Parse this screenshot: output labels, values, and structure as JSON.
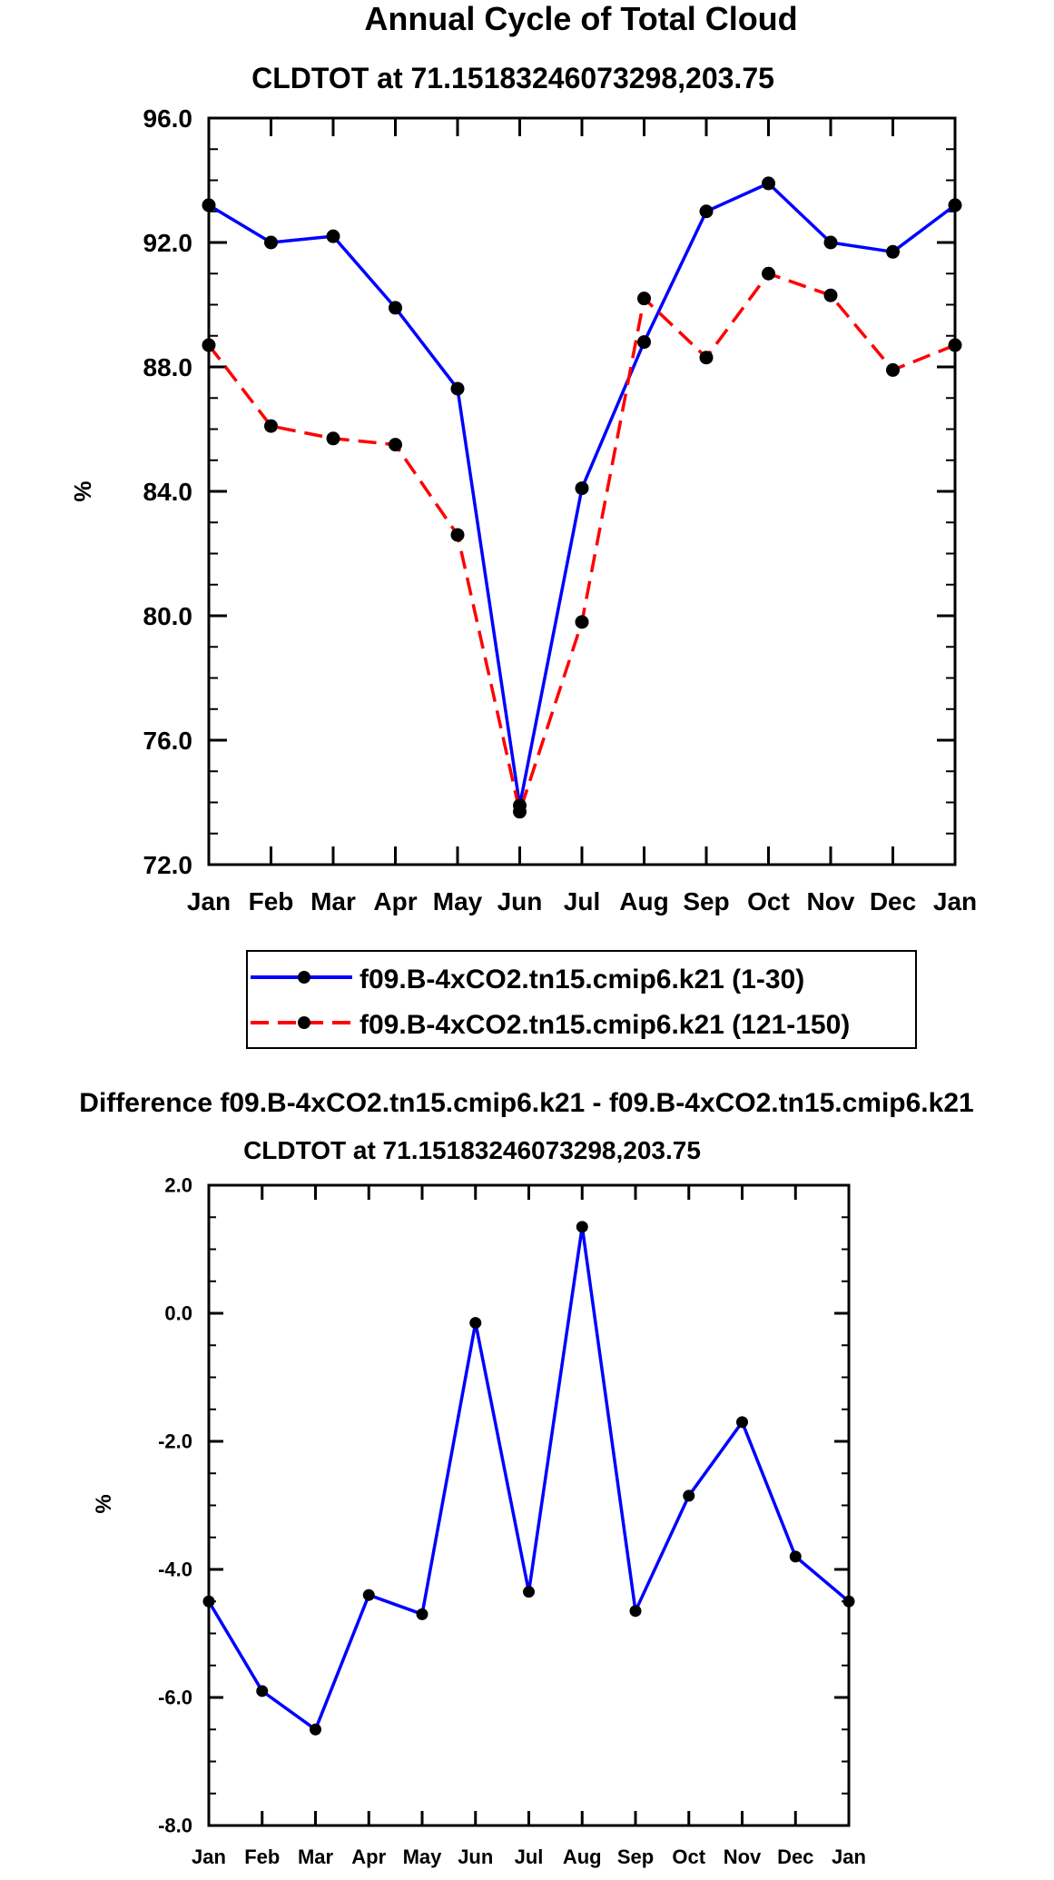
{
  "chart_data": [
    {
      "type": "line",
      "title": "Annual Cycle of Total Cloud",
      "subtitle": "CLDTOT at 71.15183246073298,203.75",
      "xlabel": "",
      "ylabel": "%",
      "categories": [
        "Jan",
        "Feb",
        "Mar",
        "Apr",
        "May",
        "Jun",
        "Jul",
        "Aug",
        "Sep",
        "Oct",
        "Nov",
        "Dec",
        "Jan"
      ],
      "ylim": [
        72.0,
        96.0
      ],
      "yticks": [
        72.0,
        76.0,
        80.0,
        84.0,
        88.0,
        92.0,
        96.0
      ],
      "ytick_labels": [
        "72.0",
        "76.0",
        "80.0",
        "84.0",
        "88.0",
        "92.0",
        "96.0"
      ],
      "grid": false,
      "legend_position": "bottom",
      "series": [
        {
          "name": "f09.B-4xCO2.tn15.cmip6.k21 (1-30)",
          "color": "#0000ff",
          "dash": "solid",
          "values": [
            93.2,
            92.0,
            92.2,
            89.9,
            87.3,
            73.9,
            84.1,
            88.8,
            93.0,
            93.9,
            92.0,
            91.7,
            93.2
          ]
        },
        {
          "name": "f09.B-4xCO2.tn15.cmip6.k21 (121-150)",
          "color": "#ff0000",
          "dash": "dashed",
          "values": [
            88.7,
            86.1,
            85.7,
            85.5,
            82.6,
            73.7,
            79.8,
            90.2,
            88.3,
            91.0,
            90.3,
            87.9,
            88.7
          ]
        }
      ]
    },
    {
      "type": "line",
      "title": "Difference f09.B-4xCO2.tn15.cmip6.k21 - f09.B-4xCO2.tn15.cmip6.k21",
      "subtitle": "CLDTOT at 71.15183246073298,203.75",
      "xlabel": "",
      "ylabel": "%",
      "categories": [
        "Jan",
        "Feb",
        "Mar",
        "Apr",
        "May",
        "Jun",
        "Jul",
        "Aug",
        "Sep",
        "Oct",
        "Nov",
        "Dec",
        "Jan"
      ],
      "ylim": [
        -8.0,
        2.0
      ],
      "yticks": [
        -8.0,
        -6.0,
        -4.0,
        -2.0,
        0.0,
        2.0
      ],
      "ytick_labels": [
        "-8.0",
        "-6.0",
        "-4.0",
        "-2.0",
        "0.0",
        "2.0"
      ],
      "grid": false,
      "series": [
        {
          "name": "difference",
          "color": "#0000ff",
          "dash": "solid",
          "values": [
            -4.5,
            -5.9,
            -6.5,
            -4.4,
            -4.7,
            -0.15,
            -4.35,
            1.35,
            -4.65,
            -2.85,
            -1.7,
            -3.8,
            -4.5
          ]
        }
      ]
    }
  ]
}
